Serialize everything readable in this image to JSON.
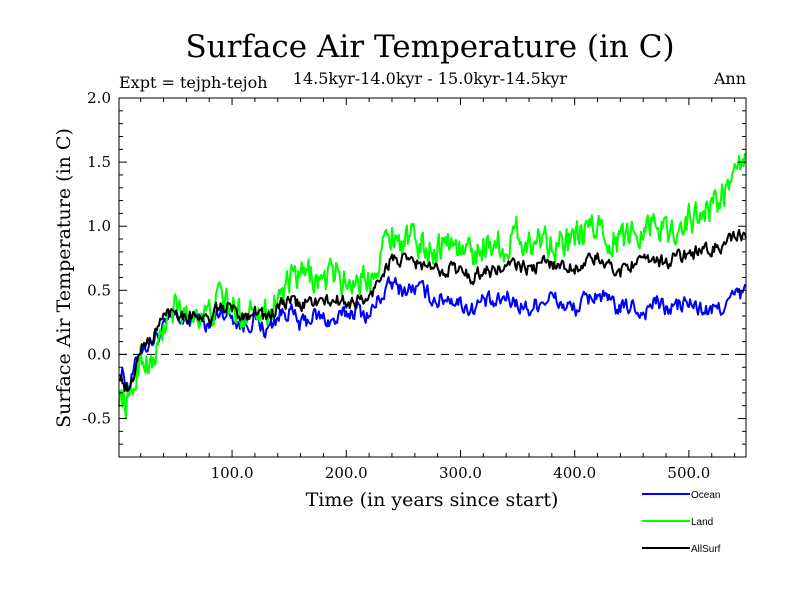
{
  "chart_data": {
    "type": "line",
    "title": "Surface Air Temperature (in C)",
    "subtitle": "14.5kyr-14.0kyr - 15.0kyr-14.5kyr",
    "expt_label": "Expt = tejph-tejoh",
    "season_label": "Ann",
    "xlabel": "Time (in years since start)",
    "ylabel": "Surface Air Temperature (in C)",
    "xlim": [
      1,
      550
    ],
    "ylim": [
      -0.8,
      2.0
    ],
    "x_ticks": [
      100,
      200,
      300,
      400,
      500
    ],
    "x_tick_labels": [
      "100.0",
      "200.0",
      "300.0",
      "400.0",
      "500.0"
    ],
    "y_ticks": [
      -0.5,
      0.0,
      0.5,
      1.0,
      1.5,
      2.0
    ],
    "y_tick_labels": [
      "-0.5",
      "0.0",
      "0.5",
      "1.0",
      "1.5",
      "2.0"
    ],
    "zero_line": 0.0,
    "legend_position": "bottom-right",
    "series": [
      {
        "name": "Ocean",
        "color": "#0000ff",
        "x": [
          1,
          10,
          20,
          30,
          40,
          50,
          60,
          70,
          80,
          90,
          100,
          110,
          120,
          130,
          140,
          150,
          160,
          170,
          180,
          190,
          200,
          210,
          220,
          230,
          240,
          250,
          260,
          270,
          280,
          290,
          300,
          310,
          320,
          330,
          340,
          350,
          360,
          370,
          380,
          390,
          400,
          410,
          420,
          430,
          440,
          450,
          460,
          470,
          480,
          490,
          500,
          510,
          520,
          530,
          540,
          550
        ],
        "values": [
          -0.1,
          -0.25,
          0.05,
          0.1,
          0.2,
          0.3,
          0.25,
          0.3,
          0.2,
          0.35,
          0.3,
          0.22,
          0.28,
          0.18,
          0.3,
          0.35,
          0.22,
          0.3,
          0.28,
          0.25,
          0.32,
          0.35,
          0.3,
          0.45,
          0.55,
          0.5,
          0.52,
          0.48,
          0.42,
          0.45,
          0.4,
          0.35,
          0.42,
          0.38,
          0.45,
          0.4,
          0.35,
          0.42,
          0.45,
          0.38,
          0.35,
          0.42,
          0.48,
          0.4,
          0.35,
          0.38,
          0.32,
          0.42,
          0.35,
          0.38,
          0.4,
          0.35,
          0.33,
          0.38,
          0.45,
          0.48
        ]
      },
      {
        "name": "Land",
        "color": "#00ff00",
        "x": [
          1,
          10,
          20,
          30,
          40,
          50,
          60,
          70,
          80,
          90,
          100,
          110,
          120,
          130,
          140,
          150,
          160,
          170,
          180,
          190,
          200,
          210,
          220,
          230,
          240,
          250,
          260,
          270,
          280,
          290,
          300,
          310,
          320,
          330,
          340,
          350,
          360,
          370,
          380,
          390,
          400,
          410,
          420,
          430,
          440,
          450,
          460,
          470,
          480,
          490,
          500,
          510,
          520,
          530,
          540,
          550
        ],
        "values": [
          -0.3,
          -0.4,
          0.0,
          -0.1,
          0.2,
          0.35,
          0.3,
          0.35,
          0.3,
          0.45,
          0.35,
          0.3,
          0.42,
          0.32,
          0.45,
          0.55,
          0.6,
          0.62,
          0.55,
          0.65,
          0.55,
          0.6,
          0.58,
          0.82,
          0.95,
          0.88,
          0.9,
          0.82,
          0.85,
          0.88,
          0.82,
          0.78,
          0.85,
          0.88,
          0.82,
          0.95,
          0.85,
          0.92,
          0.9,
          0.85,
          0.88,
          0.95,
          1.0,
          0.92,
          0.88,
          0.95,
          1.0,
          1.05,
          0.95,
          1.0,
          1.05,
          1.1,
          1.15,
          1.25,
          1.35,
          1.55
        ]
      },
      {
        "name": "AllSurf",
        "color": "#000000",
        "x": [
          1,
          10,
          20,
          30,
          40,
          50,
          60,
          70,
          80,
          90,
          100,
          110,
          120,
          130,
          140,
          150,
          160,
          170,
          180,
          190,
          200,
          210,
          220,
          230,
          240,
          250,
          260,
          270,
          280,
          290,
          300,
          310,
          320,
          330,
          340,
          350,
          360,
          370,
          380,
          390,
          400,
          410,
          420,
          430,
          440,
          450,
          460,
          470,
          480,
          490,
          500,
          510,
          520,
          530,
          540,
          550
        ],
        "values": [
          -0.15,
          -0.3,
          0.05,
          0.12,
          0.3,
          0.35,
          0.3,
          0.32,
          0.25,
          0.38,
          0.35,
          0.3,
          0.35,
          0.28,
          0.36,
          0.42,
          0.38,
          0.42,
          0.4,
          0.42,
          0.4,
          0.42,
          0.42,
          0.62,
          0.75,
          0.72,
          0.72,
          0.68,
          0.65,
          0.68,
          0.65,
          0.6,
          0.66,
          0.65,
          0.68,
          0.7,
          0.66,
          0.7,
          0.72,
          0.68,
          0.68,
          0.72,
          0.75,
          0.68,
          0.65,
          0.72,
          0.7,
          0.75,
          0.72,
          0.76,
          0.78,
          0.8,
          0.82,
          0.86,
          0.9,
          0.92
        ]
      }
    ]
  }
}
